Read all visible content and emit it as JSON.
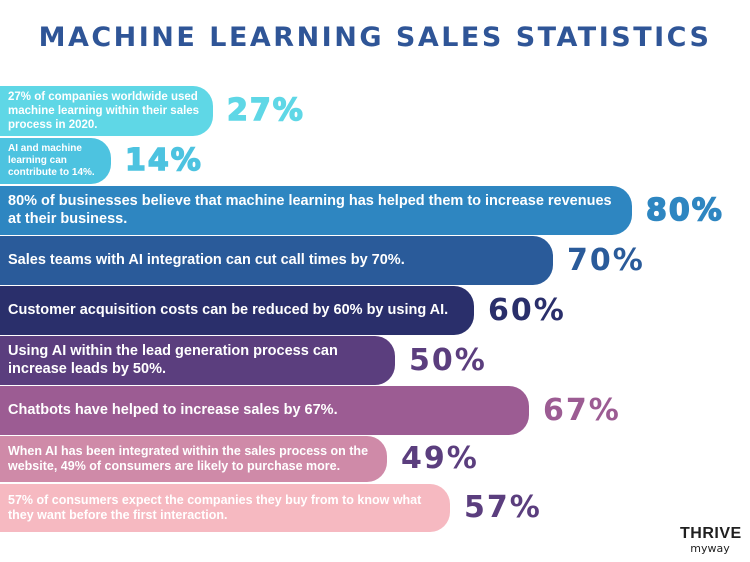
{
  "title": "MACHINE LEARNING SALES STATISTICS",
  "logo": {
    "line1": "THRIVE",
    "line2": "myway"
  },
  "chart_data": {
    "type": "bar",
    "orientation": "horizontal",
    "title": "MACHINE LEARNING SALES STATISTICS",
    "categories": [
      "27% of companies worldwide used machine learning within their sales process in 2020.",
      "AI and machine learning can contribute to 14%.",
      "80% of businesses believe that machine learning has helped them to increase revenues at their business.",
      "Sales teams with AI integration can cut call times by 70%.",
      "Customer acquisition costs can be reduced by 60% by using AI.",
      "Using AI within the lead generation process can increase leads by 50%.",
      "Chatbots have helped to increase sales by 67%.",
      "When AI has been integrated within the sales process on the website, 49% of consumers are likely to purchase more.",
      "57% of consumers expect the companies they buy from to know what they want before the first interaction."
    ],
    "values": [
      27,
      14,
      80,
      70,
      60,
      50,
      67,
      49,
      57
    ],
    "value_labels": [
      "27%",
      "14%",
      "80%",
      "70%",
      "60%",
      "50%",
      "67%",
      "49%",
      "57%"
    ],
    "bar_colors": [
      "#5fd7e6",
      "#4dc3e0",
      "#2e86c1",
      "#2a5b9a",
      "#2a2f6b",
      "#5b3e7e",
      "#9c5c93",
      "#cf8aa8",
      "#f6b9c1"
    ],
    "label_colors": [
      "#5fd7e6",
      "#4dc3e0",
      "#2e86c1",
      "#2a5b9a",
      "#2a2f6b",
      "#5b3e7e",
      "#9c5c93",
      "#5b3e7e",
      "#5b3e7e"
    ],
    "xlim": [
      0,
      100
    ],
    "grid": false
  }
}
